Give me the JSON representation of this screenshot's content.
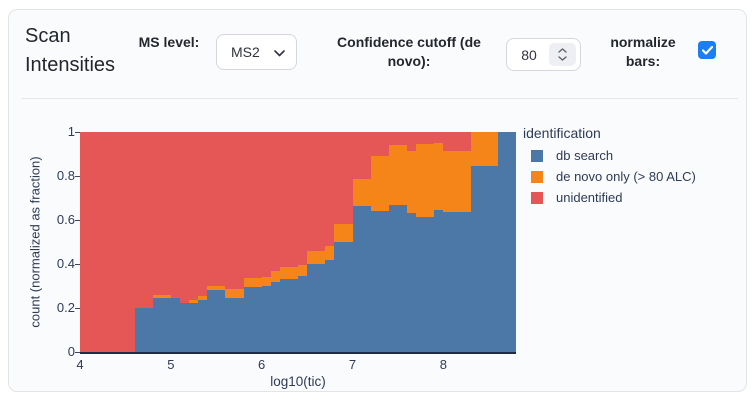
{
  "panel": {
    "title": "Scan Intensities"
  },
  "controls": {
    "ms_level": {
      "label": "MS level:",
      "value": "MS2"
    },
    "confidence_cutoff": {
      "label": "Confidence cutoff (de novo):",
      "value": "80"
    },
    "normalize_bars": {
      "label": "normalize bars:",
      "checked": true
    }
  },
  "chart_data": {
    "type": "bar",
    "subtype": "stacked-normalized-histogram",
    "title": "",
    "xlabel": "log10(tic)",
    "ylabel": "count (normalized as fraction)",
    "legend_title": "identification",
    "legend_position": "right",
    "grid": false,
    "xlim": [
      4,
      8.8
    ],
    "ylim": [
      0,
      1
    ],
    "x_ticks": [
      4,
      5,
      6,
      7,
      8
    ],
    "y_ticks": [
      0,
      0.2,
      0.4,
      0.6,
      0.8,
      1
    ],
    "bin_width": 0.1,
    "bin_start": [
      4.0,
      4.1,
      4.2,
      4.3,
      4.4,
      4.5,
      4.6,
      4.7,
      4.8,
      4.9,
      5.0,
      5.1,
      5.2,
      5.3,
      5.4,
      5.5,
      5.6,
      5.7,
      5.8,
      5.9,
      6.0,
      6.1,
      6.2,
      6.3,
      6.4,
      6.5,
      6.6,
      6.7,
      6.8,
      6.9,
      7.0,
      7.1,
      7.2,
      7.3,
      7.4,
      7.5,
      7.6,
      7.7,
      7.8,
      7.9,
      8.0,
      8.1,
      8.2,
      8.3,
      8.4,
      8.5,
      8.6,
      8.7
    ],
    "series": [
      {
        "name": "db search",
        "color": "#4c78a8",
        "values": [
          0,
          0,
          0,
          0,
          0,
          0,
          0.2,
          0.2,
          0.245,
          0.245,
          0.245,
          0.225,
          0.225,
          0.235,
          0.28,
          0.28,
          0.245,
          0.245,
          0.295,
          0.295,
          0.3,
          0.32,
          0.33,
          0.33,
          0.345,
          0.4,
          0.4,
          0.42,
          0.5,
          0.5,
          0.665,
          0.665,
          0.64,
          0.64,
          0.67,
          0.67,
          0.63,
          0.615,
          0.615,
          0.645,
          0.635,
          0.635,
          0.635,
          0.845,
          0.845,
          0.845,
          1.0,
          1.0
        ]
      },
      {
        "name": "de novo only (> 80 ALC)",
        "color": "#f58518",
        "values": [
          0,
          0,
          0,
          0,
          0,
          0,
          0,
          0,
          0.012,
          0.012,
          0,
          0,
          0.012,
          0.02,
          0.02,
          0.02,
          0.04,
          0.04,
          0.04,
          0.04,
          0.04,
          0.05,
          0.055,
          0.055,
          0.05,
          0.06,
          0.06,
          0.06,
          0.08,
          0.08,
          0.12,
          0.12,
          0.25,
          0.25,
          0.27,
          0.27,
          0.285,
          0.33,
          0.33,
          0.305,
          0.28,
          0.28,
          0.28,
          0.155,
          0.155,
          0.155,
          0,
          0
        ]
      },
      {
        "name": "unidentified",
        "color": "#e45756",
        "values": [
          1,
          1,
          1,
          1,
          1,
          1,
          0.8,
          0.8,
          0.743,
          0.743,
          0.755,
          0.775,
          0.763,
          0.745,
          0.7,
          0.7,
          0.715,
          0.715,
          0.665,
          0.665,
          0.66,
          0.63,
          0.615,
          0.615,
          0.605,
          0.54,
          0.54,
          0.52,
          0.42,
          0.42,
          0.215,
          0.215,
          0.11,
          0.11,
          0.06,
          0.06,
          0.085,
          0.055,
          0.055,
          0.05,
          0.085,
          0.085,
          0.085,
          0,
          0,
          0,
          0,
          0
        ]
      }
    ]
  },
  "colors": {
    "checkbox_accent": "#1b7ef2",
    "axis_text": "#2e3b55",
    "bar_blue": "#4c78a8",
    "bar_orange": "#f58518",
    "bar_red": "#e45756"
  }
}
